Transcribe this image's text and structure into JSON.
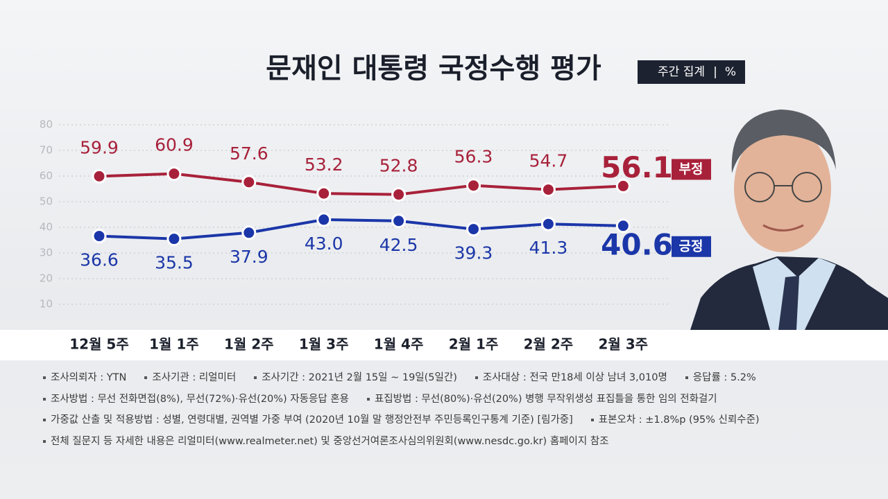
{
  "chart_data": {
    "type": "line",
    "title": "문재인 대통령 국정수행 평가",
    "badge": [
      "주간 집계",
      "%"
    ],
    "categories": [
      "12월 5주",
      "1월 1주",
      "1월 2주",
      "1월 3주",
      "1월 4주",
      "2월 1주",
      "2월 2주",
      "2월 3주"
    ],
    "series": [
      {
        "name": "부정",
        "color": "#a8213a",
        "values": [
          59.9,
          60.9,
          57.6,
          53.2,
          52.8,
          56.3,
          54.7,
          56.1
        ],
        "value_labels": [
          "59.9",
          "60.9",
          "57.6",
          "53.2",
          "52.8",
          "56.3",
          "54.7",
          "56.1"
        ]
      },
      {
        "name": "긍정",
        "color": "#1b36a8",
        "values": [
          36.6,
          35.5,
          37.9,
          43.0,
          42.5,
          39.3,
          41.3,
          40.6
        ],
        "value_labels": [
          "36.6",
          "35.5",
          "37.9",
          "43.0",
          "42.5",
          "39.3",
          "41.3",
          "40.6"
        ]
      }
    ],
    "ylim": [
      0,
      80
    ],
    "yticks": [
      10,
      20,
      30,
      40,
      50,
      60,
      70,
      80
    ],
    "grid": true,
    "notes": [
      [
        "조사의뢰자 : YTN",
        "조사기관 : 리얼미터",
        "조사기간 : 2021년 2월 15일 ~ 19일(5일간)",
        "조사대상 : 전국 만18세 이상 남녀 3,010명",
        "응답률 : 5.2%"
      ],
      [
        "조사방법 : 무선 전화면접(8%), 무선(72%)·유선(20%) 자동응답 혼용",
        "표집방법 : 무선(80%)·유선(20%) 병행 무작위생성 표집틀을 통한 임의 전화걸기"
      ],
      [
        "가중값 산출 및 적용방법 : 성별, 연령대별, 권역별 가중 부여 (2020년 10월 말 행정안전부 주민등록인구통계 기준) [림가중]",
        "표본오차 : ±1.8%p (95% 신뢰수준)"
      ],
      [
        "전체 질문지 등 자세한 내용은 리얼미터(www.realmeter.net) 및 중앙선거여론조사심의위원회(www.nesdc.go.kr) 홈페이지 참조"
      ]
    ]
  }
}
